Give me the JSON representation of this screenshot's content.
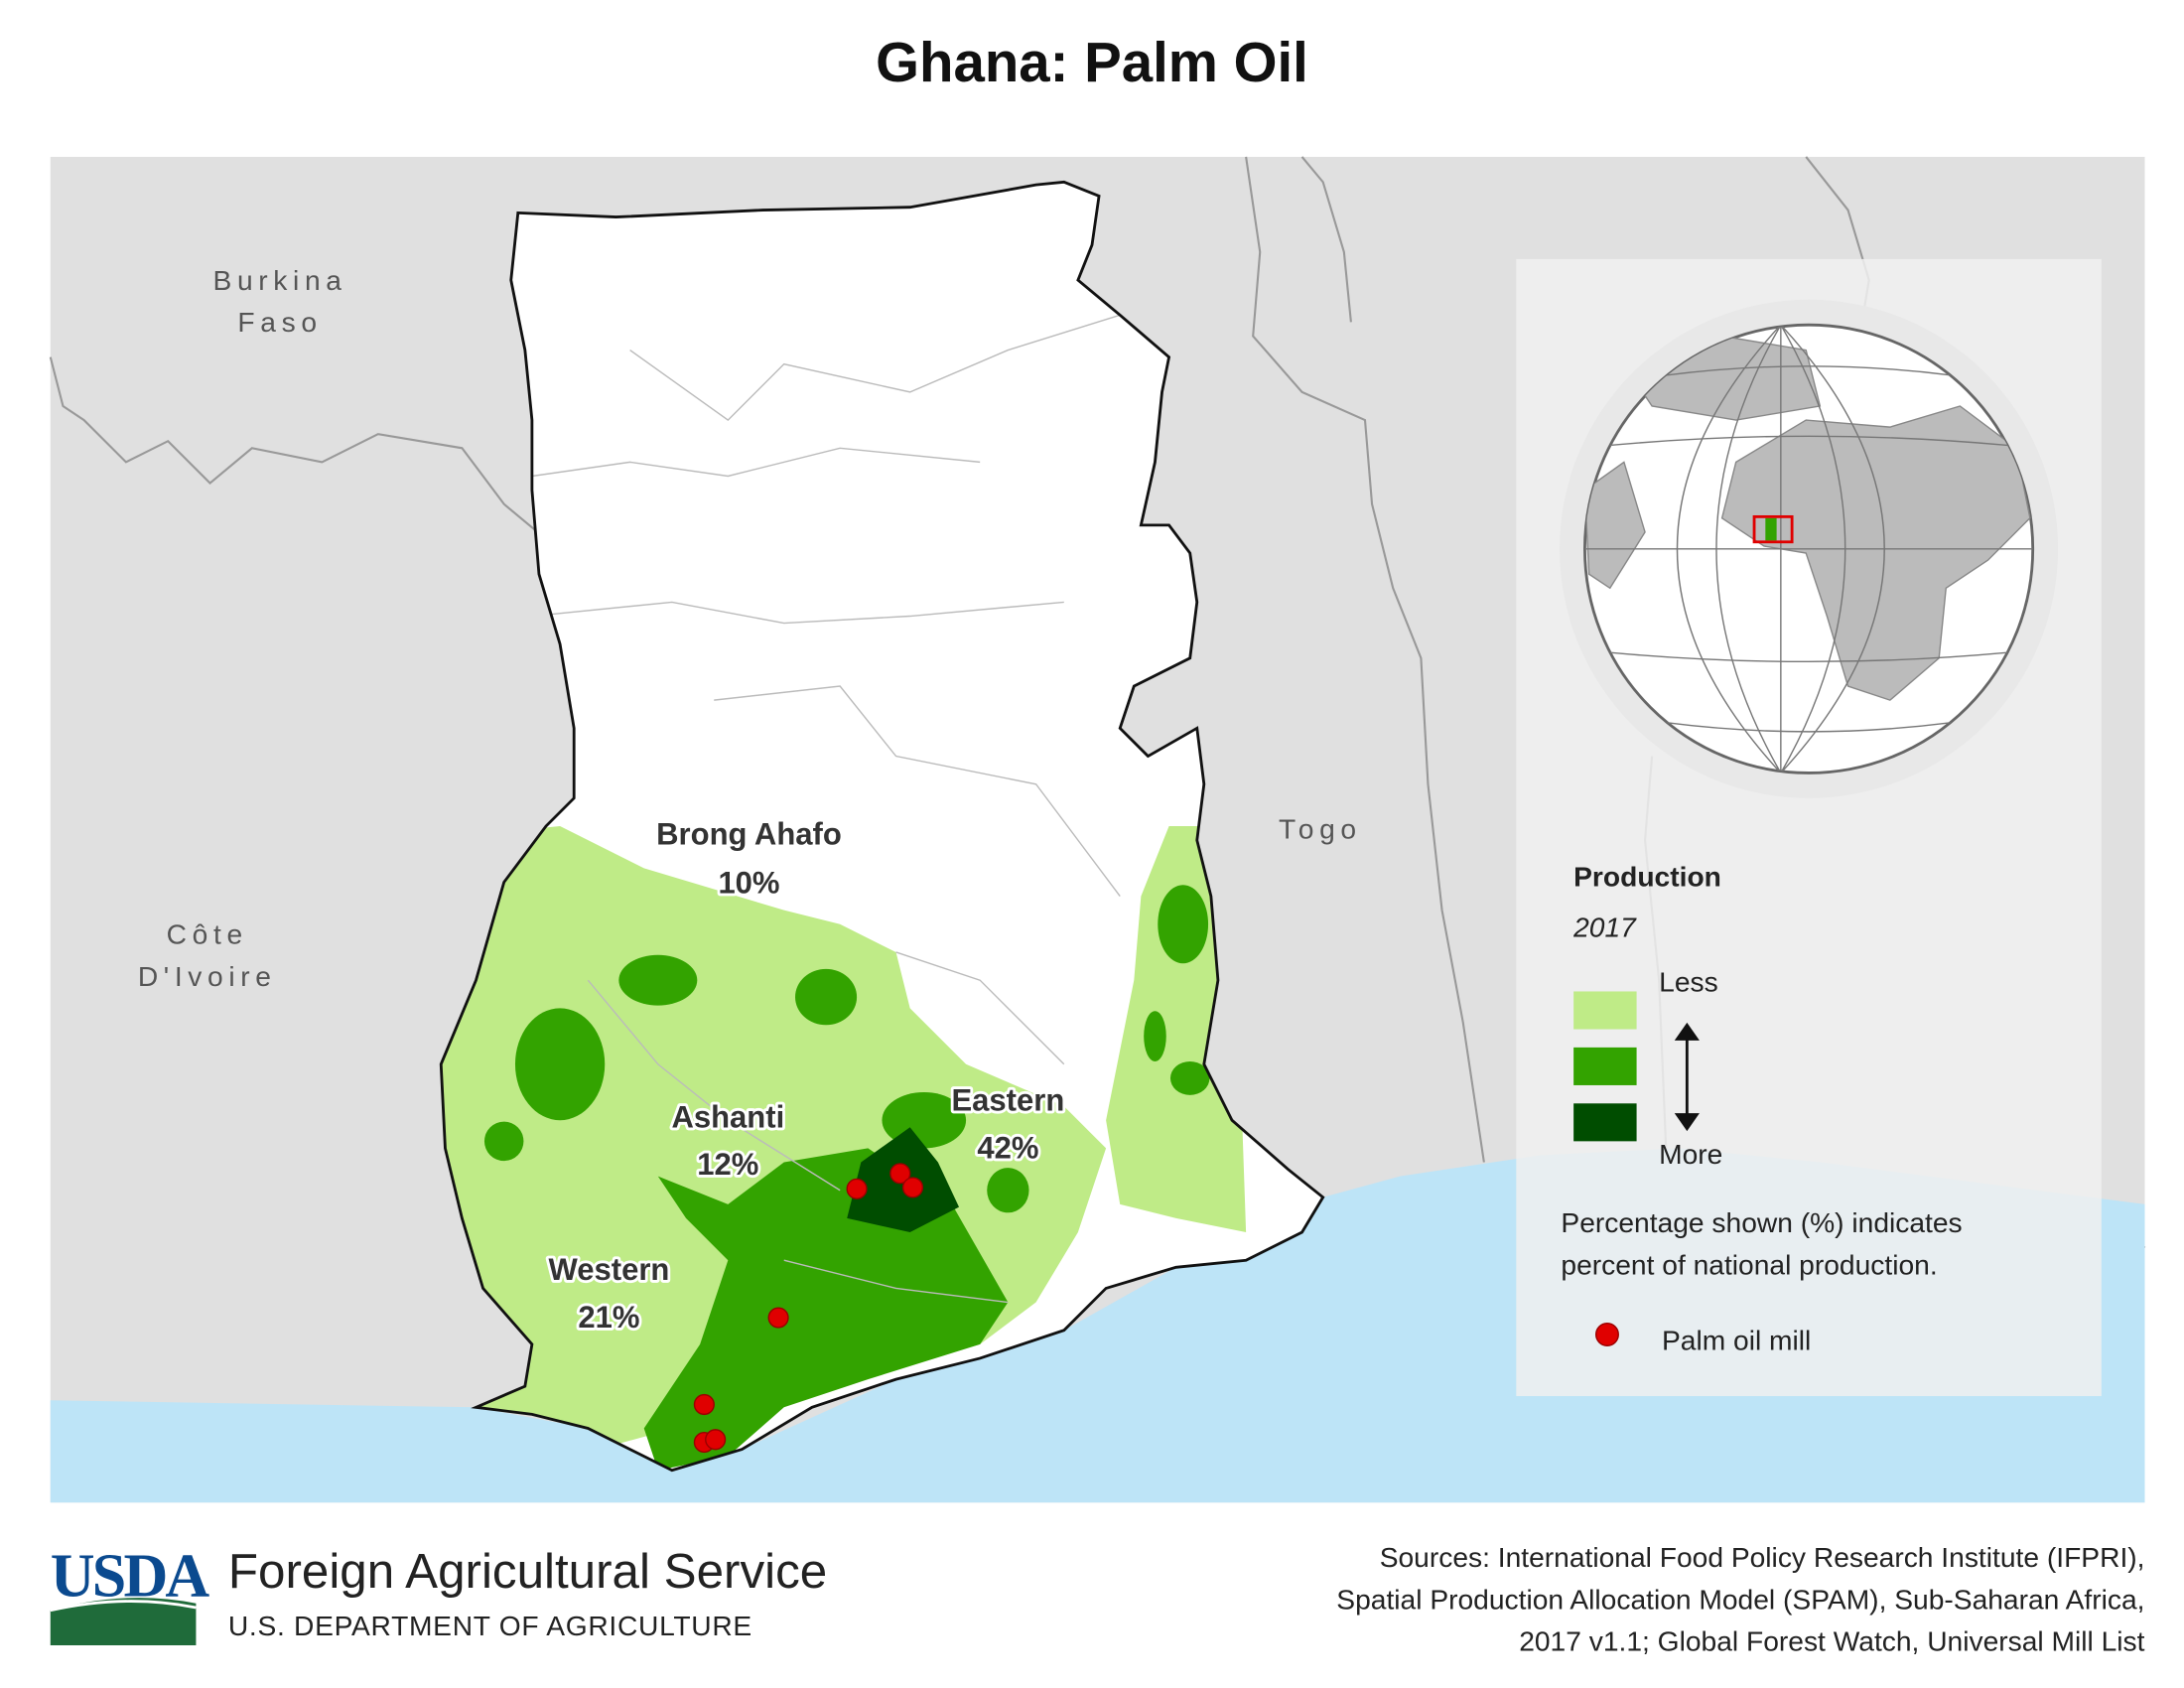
{
  "title": "Ghana: Palm Oil",
  "map": {
    "countries": [
      {
        "lines": [
          "Burkina",
          "Faso"
        ]
      },
      {
        "lines": [
          "Côte",
          "D'Ivoire"
        ]
      },
      {
        "lines": [
          "Togo"
        ]
      }
    ],
    "regions": [
      {
        "name": "Brong Ahafo",
        "share": "10%"
      },
      {
        "name": "Ashanti",
        "share": "12%"
      },
      {
        "name": "Eastern",
        "share": "42%"
      },
      {
        "name": "Western",
        "share": "21%"
      }
    ]
  },
  "legend": {
    "title": "Production",
    "year": "2017",
    "less": "Less",
    "more": "More",
    "note": [
      "Percentage shown (%) indicates",
      "percent of national production."
    ],
    "mill": "Palm oil mill"
  },
  "footer": {
    "logo": "USDA",
    "agency": "Foreign Agricultural Service",
    "department": "U.S. DEPARTMENT OF AGRICULTURE",
    "sources": [
      "Sources: International Food Policy Research Institute (IFPRI),",
      "Spatial Production Allocation Model (SPAM), Sub-Saharan Africa,",
      "2017 v1.1; Global Forest Watch, Universal Mill List"
    ]
  }
}
